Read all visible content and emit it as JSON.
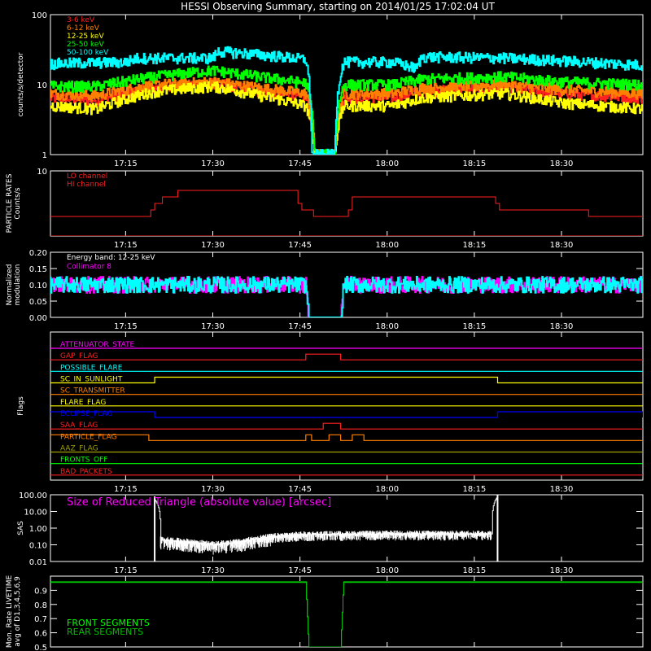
{
  "title": "HESSI Observing Summary, starting on 2014/01/25 17:02:04 UT",
  "colors": {
    "background": "#000000",
    "axes": "#ffffff",
    "red": "#ff2020",
    "orange": "#ff8000",
    "yellow": "#ffff00",
    "green": "#00ff00",
    "cyan": "#00ffff",
    "magenta": "#ff00ff",
    "blue": "#0000ff",
    "olive": "#a0a000",
    "darkgreen": "#00c000"
  },
  "chart_data": [
    {
      "id": "lightcurves",
      "type": "line",
      "ylabel": "counts/s/detector",
      "yscale": "log",
      "ylim": [
        1,
        100
      ],
      "xlim": [
        "17:02:04",
        "18:44:00"
      ],
      "x_ticks": [
        "17:15",
        "17:30",
        "17:45",
        "18:00",
        "18:15",
        "18:30"
      ],
      "y_ticks": [
        "1",
        "10",
        "100"
      ],
      "legend_position": "top-left",
      "series": [
        {
          "name": "3-6 keV",
          "color": "red",
          "x": [
            "17:02",
            "17:10",
            "17:20",
            "17:30",
            "17:38",
            "17:46",
            "17:47:30",
            "17:49",
            "17:51",
            "17:52:30",
            "18:01",
            "18:06",
            "18:20",
            "18:30",
            "18:44"
          ],
          "values": [
            6.5,
            6,
            9,
            10.5,
            8,
            6.5,
            1,
            1,
            1,
            6.5,
            6.5,
            8,
            9,
            7.5,
            6.5
          ]
        },
        {
          "name": "6-12 keV",
          "color": "orange",
          "x": [
            "17:02",
            "17:10",
            "17:20",
            "17:30",
            "17:38",
            "17:46",
            "17:47:30",
            "17:49",
            "17:51",
            "17:52:30",
            "18:01",
            "18:06",
            "18:20",
            "18:30",
            "18:44"
          ],
          "values": [
            7.5,
            7,
            10,
            11,
            9,
            7.5,
            1,
            1,
            1,
            7.5,
            7.5,
            9,
            10,
            8.5,
            7.5
          ]
        },
        {
          "name": "12-25 keV",
          "color": "yellow",
          "x": [
            "17:02",
            "17:10",
            "17:20",
            "17:30",
            "17:38",
            "17:46",
            "17:47:30",
            "17:49",
            "17:51",
            "17:52:30",
            "18:01",
            "18:06",
            "18:20",
            "18:30",
            "18:44"
          ],
          "values": [
            5,
            4.5,
            8,
            9.5,
            7,
            5,
            1,
            1,
            1,
            5,
            5,
            6.5,
            7.5,
            5.5,
            4.5
          ]
        },
        {
          "name": "25-50 keV",
          "color": "green",
          "x": [
            "17:02",
            "17:10",
            "17:20",
            "17:30",
            "17:38",
            "17:46",
            "17:47:30",
            "17:49",
            "17:51",
            "17:52:30",
            "18:01",
            "18:06",
            "18:20",
            "18:30",
            "18:44"
          ],
          "values": [
            9.5,
            9.5,
            13,
            16,
            13,
            10.5,
            1,
            1,
            1,
            10,
            10,
            12,
            13,
            11,
            10
          ]
        },
        {
          "name": "50-100 keV",
          "color": "cyan",
          "x": [
            "17:02",
            "17:15",
            "17:17",
            "17:30",
            "17:31",
            "17:40",
            "17:46",
            "17:47",
            "17:51",
            "17:52:30",
            "18:01",
            "18:05",
            "18:06",
            "18:20",
            "18:44"
          ],
          "values": [
            20,
            21,
            24,
            24,
            30,
            26,
            23,
            1,
            1,
            21,
            21,
            17,
            25,
            24,
            19
          ]
        }
      ]
    },
    {
      "id": "particle_rates",
      "type": "line",
      "ylabel": "PARTICLE RATES\nCounts/s",
      "ylim": [
        0,
        10
      ],
      "xlim": [
        "17:02:04",
        "18:44:00"
      ],
      "x_ticks": [
        "17:15",
        "17:30",
        "17:45",
        "18:00",
        "18:15",
        "18:30"
      ],
      "y_ticks": [
        "10"
      ],
      "legend_position": "top-left",
      "series": [
        {
          "name": "LO channel",
          "color": "red",
          "x": [
            "17:02",
            "17:19",
            "17:20",
            "17:25",
            "17:35",
            "17:44",
            "17:45",
            "17:49",
            "17:53",
            "17:54",
            "18:05",
            "18:18",
            "18:19",
            "18:25",
            "18:44"
          ],
          "values": [
            3,
            3,
            5,
            7,
            7,
            7,
            4,
            3,
            3,
            6,
            6,
            6,
            4,
            4,
            3
          ]
        },
        {
          "name": "HI channel",
          "color": "red",
          "x": [
            "17:02",
            "18:44"
          ],
          "values": [
            0,
            0
          ]
        }
      ]
    },
    {
      "id": "modulation",
      "type": "line",
      "ylabel": "Normalized\nmodulation",
      "ylim": [
        0,
        0.2
      ],
      "xlim": [
        "17:02:04",
        "18:44:00"
      ],
      "x_ticks": [
        "17:15",
        "17:30",
        "17:45",
        "18:00",
        "18:15",
        "18:30"
      ],
      "y_ticks": [
        "0.00",
        "0.05",
        "0.10",
        "0.15",
        "0.20"
      ],
      "legend_position": "top-left",
      "legend_title": "Energy band: 12-25 keV",
      "series": [
        {
          "name": "Collimator 8",
          "color": "magenta",
          "x": [
            "17:02",
            "17:46",
            "17:46:30",
            "17:52",
            "17:52:30",
            "18:44"
          ],
          "values": [
            0.1,
            0.1,
            0,
            0,
            0.1,
            0.1
          ]
        },
        {
          "name": "",
          "color": "cyan",
          "x": [
            "17:02",
            "17:46",
            "17:46:30",
            "17:52",
            "17:52:30",
            "18:44"
          ],
          "values": [
            0.1,
            0.1,
            0,
            0,
            0.1,
            0.1
          ]
        }
      ]
    },
    {
      "id": "flags",
      "type": "line",
      "ylabel": "Flags",
      "xlim": [
        "17:02:04",
        "18:44:00"
      ],
      "x_ticks": [
        "17:15",
        "17:30",
        "17:45",
        "18:00",
        "18:15",
        "18:30"
      ],
      "flags": [
        {
          "name": "ATTENUATOR_STATE",
          "color": "magenta",
          "segments": []
        },
        {
          "name": "GAP_FLAG",
          "color": "red",
          "segments": [
            [
              "17:46",
              "17:52"
            ]
          ]
        },
        {
          "name": "POSSIBLE_FLARE",
          "color": "cyan",
          "segments": []
        },
        {
          "name": "SC_IN_SUNLIGHT",
          "color": "yellow",
          "segments": [
            [
              "17:20",
              "18:19"
            ]
          ]
        },
        {
          "name": "SC_TRANSMITTER",
          "color": "orange",
          "segments": []
        },
        {
          "name": "FLARE_FLAG",
          "color": "yellow",
          "segments": []
        },
        {
          "name": "ECLIPSE_FLAG",
          "color": "blue",
          "segments": [
            [
              "17:02",
              "17:20"
            ],
            [
              "18:19",
              "18:44"
            ]
          ]
        },
        {
          "name": "SAA_FLAG",
          "color": "red",
          "segments": [
            [
              "17:49",
              "17:52"
            ]
          ]
        },
        {
          "name": "PARTICLE_FLAG",
          "color": "orange",
          "segments": [
            [
              "17:02",
              "17:19"
            ],
            [
              "17:46",
              "17:47"
            ],
            [
              "17:50",
              "17:52"
            ],
            [
              "17:54",
              "17:56"
            ]
          ]
        },
        {
          "name": "AAZ_FLAG",
          "color": "olive",
          "segments": []
        },
        {
          "name": "FRONTS_OFF",
          "color": "green",
          "segments": []
        },
        {
          "name": "BAD_PACKETS",
          "color": "red",
          "segments": []
        }
      ]
    },
    {
      "id": "sas",
      "type": "line",
      "ylabel": "SAS",
      "yscale": "log",
      "ylim": [
        0.01,
        100
      ],
      "xlim": [
        "17:02:04",
        "18:44:00"
      ],
      "x_ticks": [
        "17:15",
        "17:30",
        "17:45",
        "18:00",
        "18:15",
        "18:30"
      ],
      "y_ticks": [
        "0.01",
        "0.10",
        "1.00",
        "10.00",
        "100.00"
      ],
      "legend_position": "top-left",
      "series": [
        {
          "name": "Size of Reduced Triangle (absolute value) [arcsec]",
          "color": "axes",
          "x": [
            "17:20",
            "17:21",
            "17:30",
            "17:35",
            "17:40",
            "17:45",
            "18:00",
            "18:18",
            "18:19"
          ],
          "values": [
            50,
            0.2,
            0.1,
            0.15,
            0.3,
            0.4,
            0.45,
            0.45,
            80
          ]
        }
      ]
    },
    {
      "id": "livetime",
      "type": "line",
      "ylabel": "Mon. Rate LIVETIME\navg of D1,3,4,5,6,9",
      "ylim": [
        0.5,
        1.0
      ],
      "xlim": [
        "17:02:04",
        "18:44:00"
      ],
      "x_ticks": [
        "17:15",
        "17:30",
        "17:45",
        "18:00",
        "18:15",
        "18:30"
      ],
      "y_ticks": [
        "0.5",
        "0.6",
        "0.7",
        "0.8",
        "0.9"
      ],
      "legend_position": "bottom-left",
      "series": [
        {
          "name": "FRONT SEGMENTS",
          "color": "green",
          "x": [
            "17:02",
            "17:46",
            "17:46:30",
            "17:52",
            "17:52:30",
            "18:44"
          ],
          "values": [
            0.96,
            0.96,
            0.5,
            0.5,
            0.96,
            0.96
          ]
        },
        {
          "name": "REAR SEGMENTS",
          "color": "darkgreen",
          "x": [
            "17:02",
            "17:46",
            "17:46:30",
            "17:52",
            "17:52:30",
            "18:44"
          ],
          "values": [
            0.955,
            0.955,
            0.5,
            0.5,
            0.955,
            0.955
          ]
        }
      ]
    }
  ]
}
